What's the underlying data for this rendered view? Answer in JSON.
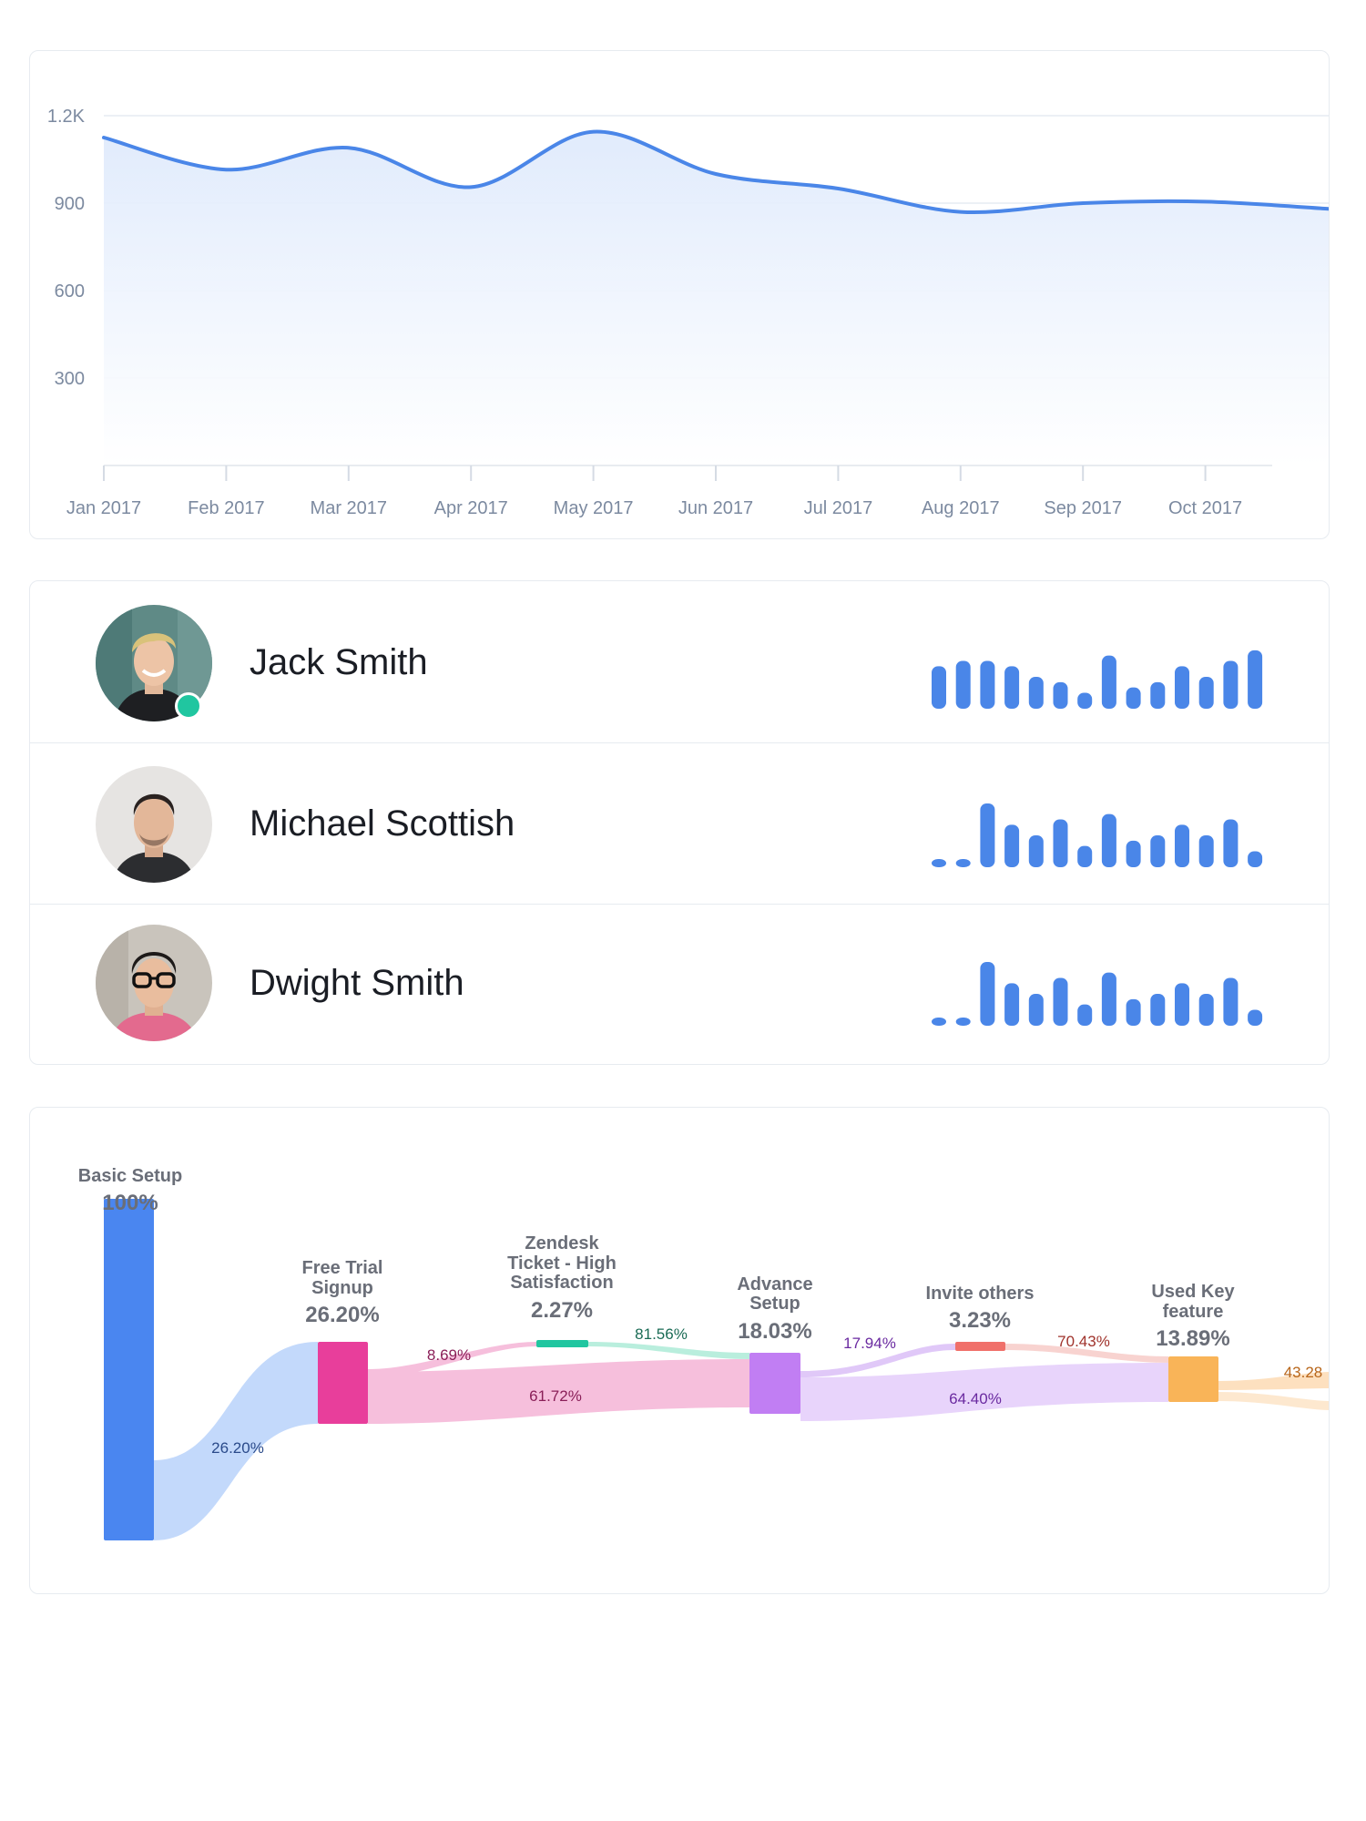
{
  "line_chart": {
    "chart_data": {
      "type": "area",
      "x": [
        "Jan 2017",
        "Feb 2017",
        "Mar 2017",
        "Apr 2017",
        "May 2017",
        "Jun 2017",
        "Jul 2017",
        "Aug 2017",
        "Sep 2017",
        "Oct 2017"
      ],
      "y_ticks": [
        "1.2K",
        "900",
        "600",
        "300"
      ],
      "y_tick_values": [
        1200,
        900,
        600,
        300
      ],
      "ylim": [
        0,
        1200
      ],
      "series": [
        {
          "values": [
            1125,
            1015,
            1090,
            955,
            1145,
            1000,
            950,
            870,
            900,
            905
          ]
        }
      ],
      "line_color": "#4a86e8",
      "fill_color": "#e8f0fd",
      "grid": true
    }
  },
  "users": [
    {
      "name": "Jack Smith",
      "online": true,
      "activity": [
        8,
        9,
        9,
        8,
        6,
        5,
        3,
        10,
        4,
        5,
        8,
        6,
        9,
        11
      ]
    },
    {
      "name": "Michael Scottish",
      "online": false,
      "activity": [
        1,
        1,
        12,
        8,
        6,
        9,
        4,
        10,
        5,
        6,
        8,
        6,
        9,
        3
      ]
    },
    {
      "name": "Dwight Smith",
      "online": false,
      "activity": [
        1,
        1,
        12,
        8,
        6,
        9,
        4,
        10,
        5,
        6,
        8,
        6,
        9,
        3
      ]
    }
  ],
  "funnel": {
    "steps": [
      {
        "label": [
          "Basic Setup"
        ],
        "value": "100%",
        "color": "#4a86f0"
      },
      {
        "label": [
          "Free Trial",
          "Signup"
        ],
        "value": "26.20%",
        "color": "#e83e9b"
      },
      {
        "label": [
          "Zendesk",
          "Ticket - High",
          "Satisfaction"
        ],
        "value": "2.27%",
        "color": "#20c6a0"
      },
      {
        "label": [
          "Advance",
          "Setup"
        ],
        "value": "18.03%",
        "color": "#c17ef3"
      },
      {
        "label": [
          "Invite others"
        ],
        "value": "3.23%",
        "color": "#f0706a"
      },
      {
        "label": [
          "Used Key",
          "feature"
        ],
        "value": "13.89%",
        "color": "#f9b458"
      }
    ],
    "flows": {
      "basic_to_trial": "26.20%",
      "trial_to_zendesk": "8.69%",
      "zendesk_to_advance": "81.56%",
      "trial_to_advance": "61.72%",
      "advance_to_invite": "17.94%",
      "invite_to_used": "70.43%",
      "advance_to_used": "64.40%",
      "used_out": "43.28"
    }
  }
}
